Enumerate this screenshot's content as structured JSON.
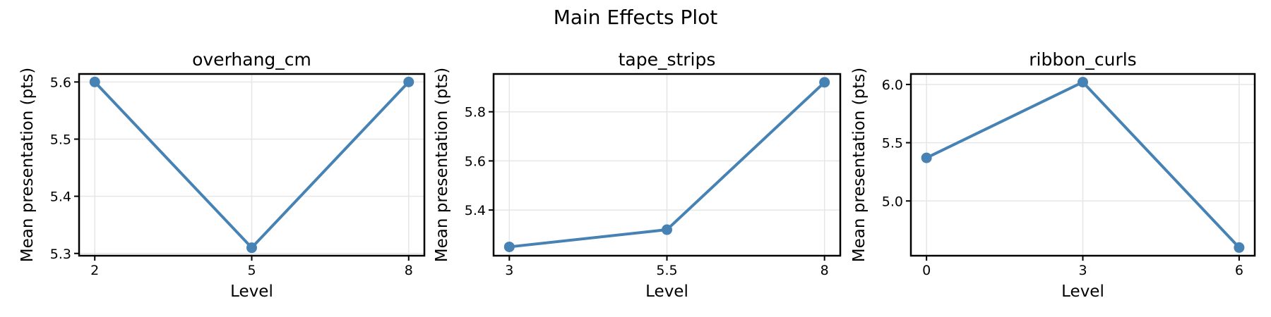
{
  "figure": {
    "suptitle": "Main Effects Plot",
    "background_color": "#ffffff",
    "line_color": "#4682b4",
    "grid_color": "#e6e6e6",
    "spine_color": "#000000",
    "text_color": "#000000"
  },
  "chart_data": [
    {
      "type": "line",
      "title": "overhang_cm",
      "xlabel": "Level",
      "ylabel": "Mean presentation (pts)",
      "x": [
        2,
        5,
        8
      ],
      "values": [
        5.6,
        5.31,
        5.6
      ],
      "xticks": [
        2,
        5,
        8
      ],
      "xtick_labels": [
        "2",
        "5",
        "8"
      ],
      "yticks": [
        5.3,
        5.4,
        5.5,
        5.6
      ],
      "ytick_labels": [
        "5.3",
        "5.4",
        "5.5",
        "5.6"
      ],
      "xlim": [
        1.7,
        8.3
      ],
      "ylim": [
        5.296,
        5.614
      ],
      "grid": true,
      "legend": null,
      "marker": "circle"
    },
    {
      "type": "line",
      "title": "tape_strips",
      "xlabel": "Level",
      "ylabel": "Mean presentation (pts)",
      "x": [
        3,
        5.5,
        8
      ],
      "values": [
        5.25,
        5.32,
        5.92
      ],
      "xticks": [
        3,
        5.5,
        8
      ],
      "xtick_labels": [
        "3",
        "5.5",
        "8"
      ],
      "yticks": [
        5.4,
        5.6,
        5.8
      ],
      "ytick_labels": [
        "5.4",
        "5.6",
        "5.8"
      ],
      "xlim": [
        2.75,
        8.25
      ],
      "ylim": [
        5.214,
        5.954
      ],
      "grid": true,
      "legend": null,
      "marker": "circle"
    },
    {
      "type": "line",
      "title": "ribbon_curls",
      "xlabel": "Level",
      "ylabel": "Mean presentation (pts)",
      "x": [
        0,
        3,
        6
      ],
      "values": [
        5.37,
        6.02,
        4.6
      ],
      "xticks": [
        0,
        3,
        6
      ],
      "xtick_labels": [
        "0",
        "3",
        "6"
      ],
      "yticks": [
        5.0,
        5.5,
        6.0
      ],
      "ytick_labels": [
        "5.0",
        "5.5",
        "6.0"
      ],
      "xlim": [
        -0.3,
        6.3
      ],
      "ylim": [
        4.53,
        6.09
      ],
      "grid": true,
      "legend": null,
      "marker": "circle"
    }
  ]
}
